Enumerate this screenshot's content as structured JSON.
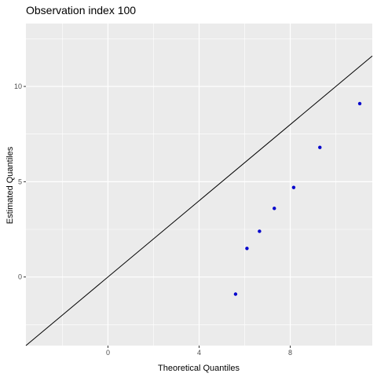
{
  "chart_data": {
    "type": "scatter",
    "title": "Observation index 100",
    "xlabel": "Theoretical Quantiles",
    "ylabel": "Estimated Quantiles",
    "xlim": [
      -3.6,
      11.6
    ],
    "ylim": [
      -3.6,
      13.3
    ],
    "x_ticks": [
      0,
      4,
      8
    ],
    "x_tick_labels": [
      "0",
      "4",
      "8"
    ],
    "y_ticks": [
      0,
      5,
      10
    ],
    "y_tick_labels": [
      "0",
      "5",
      "10"
    ],
    "grid": true,
    "background_color": "#ebebeb",
    "grid_color": "#ffffff",
    "point_color": "#0000cc",
    "reference_line": {
      "intercept": 0,
      "slope": 1,
      "color": "#000000"
    },
    "series": [
      {
        "points": [
          {
            "x": 5.6,
            "y": -0.9
          },
          {
            "x": 6.1,
            "y": 1.5
          },
          {
            "x": 6.65,
            "y": 2.4
          },
          {
            "x": 7.3,
            "y": 3.6
          },
          {
            "x": 8.15,
            "y": 4.7
          },
          {
            "x": 9.3,
            "y": 6.8
          },
          {
            "x": 11.05,
            "y": 9.1
          }
        ]
      }
    ]
  }
}
